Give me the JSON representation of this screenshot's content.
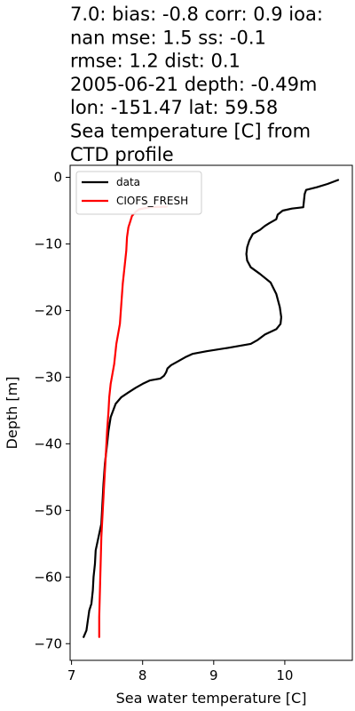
{
  "chart_data": {
    "type": "line",
    "title_lines": [
      "7.0: bias: -0.8  corr: 0.9  ioa:",
      "nan  mse: 1.5  ss: -0.1",
      "rmse: 1.2  dist: 0.1",
      "2005-06-21 depth: -0.49m",
      "lon: -151.47 lat: 59.58",
      "Sea temperature [C] from",
      "CTD profile"
    ],
    "xlabel": "Sea water temperature [C]",
    "ylabel": "Depth [m]",
    "xlim": [
      6.98,
      10.95
    ],
    "ylim": [
      -72.5,
      1.8
    ],
    "xticks": [
      7,
      8,
      9,
      10
    ],
    "yticks": [
      0,
      -10,
      -20,
      -30,
      -40,
      -50,
      -60,
      -70
    ],
    "ytick_labels": [
      "0",
      "−10",
      "−20",
      "−30",
      "−40",
      "−50",
      "−60",
      "−70"
    ],
    "legend": {
      "placement": "top-left"
    },
    "series": [
      {
        "name": "data",
        "color": "#000000",
        "points": [
          [
            10.75,
            -0.4
          ],
          [
            10.6,
            -1.0
          ],
          [
            10.45,
            -1.5
          ],
          [
            10.3,
            -1.9
          ],
          [
            10.28,
            -2.5
          ],
          [
            10.27,
            -3.5
          ],
          [
            10.26,
            -4.5
          ],
          [
            10.1,
            -4.7
          ],
          [
            9.97,
            -5.0
          ],
          [
            9.9,
            -5.6
          ],
          [
            9.88,
            -6.3
          ],
          [
            9.78,
            -6.9
          ],
          [
            9.72,
            -7.3
          ],
          [
            9.65,
            -7.9
          ],
          [
            9.55,
            -8.5
          ],
          [
            9.5,
            -9.5
          ],
          [
            9.47,
            -10.5
          ],
          [
            9.46,
            -11.5
          ],
          [
            9.47,
            -12.5
          ],
          [
            9.52,
            -13.5
          ],
          [
            9.65,
            -14.5
          ],
          [
            9.8,
            -15.8
          ],
          [
            9.88,
            -17.5
          ],
          [
            9.93,
            -19.5
          ],
          [
            9.95,
            -21.0
          ],
          [
            9.94,
            -22.0
          ],
          [
            9.88,
            -22.8
          ],
          [
            9.72,
            -23.6
          ],
          [
            9.62,
            -24.4
          ],
          [
            9.52,
            -25.0
          ],
          [
            9.2,
            -25.6
          ],
          [
            8.9,
            -26.1
          ],
          [
            8.7,
            -26.5
          ],
          [
            8.6,
            -27.0
          ],
          [
            8.5,
            -27.6
          ],
          [
            8.4,
            -28.2
          ],
          [
            8.35,
            -28.7
          ],
          [
            8.33,
            -29.3
          ],
          [
            8.3,
            -29.8
          ],
          [
            8.25,
            -30.2
          ],
          [
            8.1,
            -30.5
          ],
          [
            8.0,
            -31.0
          ],
          [
            7.9,
            -31.6
          ],
          [
            7.8,
            -32.3
          ],
          [
            7.7,
            -33.0
          ],
          [
            7.62,
            -34.0
          ],
          [
            7.55,
            -36.0
          ],
          [
            7.52,
            -38.0
          ],
          [
            7.5,
            -40.0
          ],
          [
            7.47,
            -43.0
          ],
          [
            7.45,
            -46.0
          ],
          [
            7.43,
            -50.0
          ],
          [
            7.42,
            -52.0
          ],
          [
            7.38,
            -54.0
          ],
          [
            7.34,
            -56.0
          ],
          [
            7.33,
            -58.0
          ],
          [
            7.31,
            -60.0
          ],
          [
            7.3,
            -62.0
          ],
          [
            7.28,
            -64.0
          ],
          [
            7.25,
            -65.0
          ],
          [
            7.23,
            -66.5
          ],
          [
            7.21,
            -68.0
          ],
          [
            7.17,
            -69.0
          ]
        ]
      },
      {
        "name": "CIOFS_FRESH",
        "color": "#ff0000",
        "points": [
          [
            8.34,
            -4.4
          ],
          [
            8.1,
            -4.5
          ],
          [
            7.95,
            -4.8
          ],
          [
            7.9,
            -5.2
          ],
          [
            7.85,
            -5.8
          ],
          [
            7.83,
            -6.5
          ],
          [
            7.8,
            -7.5
          ],
          [
            7.78,
            -9.0
          ],
          [
            7.77,
            -11.0
          ],
          [
            7.75,
            -13.0
          ],
          [
            7.72,
            -16.0
          ],
          [
            7.7,
            -19.0
          ],
          [
            7.68,
            -22.0
          ],
          [
            7.63,
            -25.0
          ],
          [
            7.6,
            -28.0
          ],
          [
            7.55,
            -31.0
          ],
          [
            7.53,
            -33.0
          ],
          [
            7.52,
            -35.0
          ],
          [
            7.5,
            -38.0
          ],
          [
            7.48,
            -42.0
          ],
          [
            7.46,
            -46.0
          ],
          [
            7.44,
            -50.0
          ],
          [
            7.42,
            -54.0
          ],
          [
            7.41,
            -58.0
          ],
          [
            7.4,
            -62.0
          ],
          [
            7.39,
            -66.0
          ],
          [
            7.39,
            -69.0
          ]
        ]
      }
    ]
  }
}
